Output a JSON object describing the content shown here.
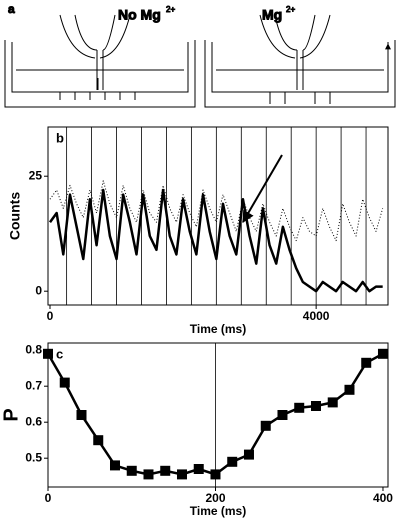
{
  "panel_a": {
    "label": "a",
    "left_title": "No Mg",
    "left_sup": "2+",
    "right_title": "Mg",
    "right_sup": "2+"
  },
  "chart_data": [
    {
      "type": "line",
      "panel_label": "b",
      "x_label": "Time (ms)",
      "y_label": "Counts",
      "xlim": [
        -30,
        5080
      ],
      "ylim": [
        -3,
        35.7
      ],
      "xticks": [
        0,
        4000
      ],
      "yticks": [
        0,
        25
      ],
      "event_lines": [
        250,
        625,
        1000,
        1375,
        1750,
        2125,
        2500,
        2875,
        3250,
        3625,
        4000,
        4375,
        4750
      ],
      "x": [
        0,
        100,
        200,
        300,
        400,
        500,
        600,
        700,
        800,
        900,
        1000,
        1100,
        1200,
        1300,
        1400,
        1500,
        1600,
        1700,
        1800,
        1900,
        2000,
        2100,
        2200,
        2300,
        2400,
        2500,
        2600,
        2700,
        2800,
        2900,
        3000,
        3100,
        3200,
        3300,
        3400,
        3500,
        3600,
        3700,
        3800,
        3900,
        4000,
        4100,
        4200,
        4300,
        4400,
        4500,
        4600,
        4700,
        4800,
        4900,
        5000
      ],
      "series": [
        {
          "color": "#000000",
          "line_style": "solid",
          "values": [
            15,
            17,
            8,
            21,
            14,
            7,
            20,
            10,
            22,
            12,
            7,
            21,
            15,
            8,
            21,
            12,
            9,
            22,
            12,
            8,
            20,
            13,
            8,
            21,
            13,
            7,
            19,
            12,
            8,
            20,
            12,
            6,
            18,
            10,
            6,
            14,
            9,
            5,
            2,
            1,
            0,
            2,
            1,
            0,
            2,
            1,
            0,
            2,
            0,
            1,
            1
          ]
        },
        {
          "color": "#000000",
          "line_style": "dotted",
          "values": [
            20,
            22,
            18,
            23,
            19,
            16,
            22,
            17,
            24,
            19,
            16,
            23,
            18,
            15,
            22,
            17,
            15,
            23,
            18,
            15,
            21,
            17,
            14,
            22,
            18,
            15,
            21,
            17,
            13,
            20,
            16,
            13,
            19,
            15,
            12,
            18,
            14,
            11,
            16,
            13,
            12,
            18,
            14,
            11,
            19,
            15,
            12,
            20,
            16,
            13,
            18
          ]
        }
      ]
    },
    {
      "type": "line",
      "panel_label": "c",
      "x_label": "Time (ms)",
      "y_label": "P",
      "xlim": [
        0,
        406
      ],
      "ylim": [
        0.42,
        0.82
      ],
      "xticks": [
        0,
        200,
        400
      ],
      "yticks": [
        0.5,
        0.6,
        0.7,
        0.8
      ],
      "reference_x": 200,
      "x": [
        0,
        20,
        40,
        60,
        80,
        100,
        120,
        140,
        160,
        180,
        200,
        220,
        240,
        260,
        280,
        300,
        320,
        340,
        360,
        380,
        400
      ],
      "series": [
        {
          "color": "#000000",
          "line_style": "solid",
          "marker": "square",
          "values": [
            0.79,
            0.71,
            0.62,
            0.55,
            0.48,
            0.465,
            0.455,
            0.465,
            0.455,
            0.47,
            0.455,
            0.49,
            0.51,
            0.59,
            0.62,
            0.64,
            0.645,
            0.655,
            0.69,
            0.765,
            0.79
          ]
        }
      ]
    }
  ]
}
